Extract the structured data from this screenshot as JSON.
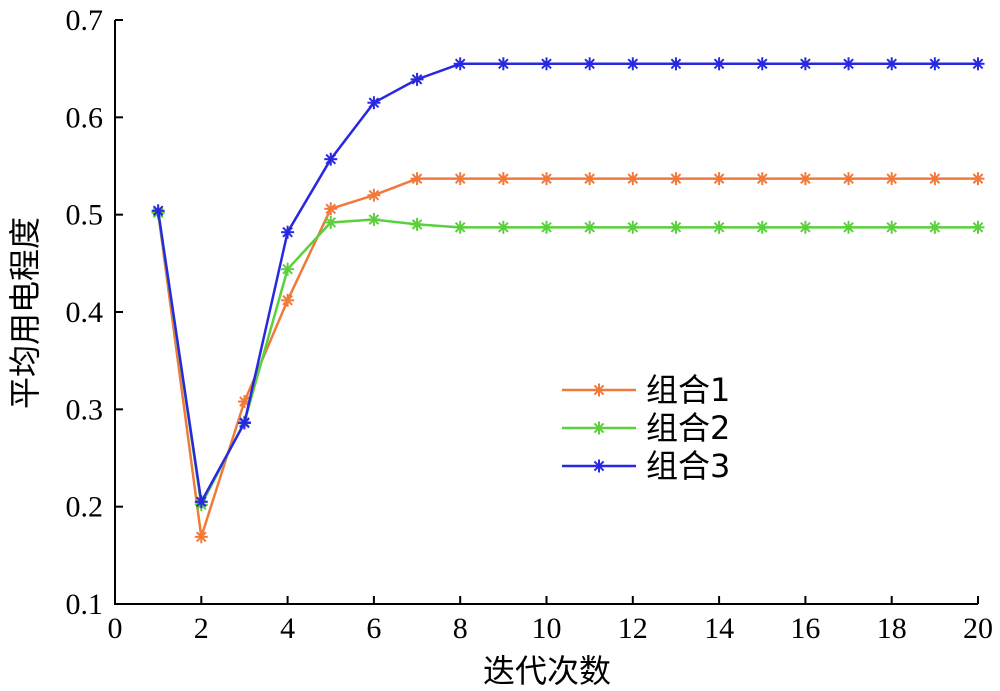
{
  "chart_data": {
    "type": "line",
    "title": "",
    "xlabel": "迭代次数",
    "ylabel": "平均用电程度",
    "xlim": [
      0,
      20
    ],
    "ylim": [
      0.1,
      0.7
    ],
    "x_ticks": [
      "0",
      "2",
      "4",
      "6",
      "8",
      "10",
      "12",
      "14",
      "16",
      "18",
      "20"
    ],
    "y_ticks": [
      "0.1",
      "0.2",
      "0.3",
      "0.4",
      "0.5",
      "0.6",
      "0.7"
    ],
    "grid": false,
    "legend_position": "center-right",
    "marker": "asterisk",
    "x": [
      1,
      2,
      3,
      4,
      5,
      6,
      7,
      8,
      9,
      10,
      11,
      12,
      13,
      14,
      15,
      16,
      17,
      18,
      19,
      20
    ],
    "series": [
      {
        "name": "组合1",
        "color": "#f07a3c",
        "values": [
          0.502,
          0.169,
          0.308,
          0.412,
          0.506,
          0.52,
          0.537,
          0.537,
          0.537,
          0.537,
          0.537,
          0.537,
          0.537,
          0.537,
          0.537,
          0.537,
          0.537,
          0.537,
          0.537,
          0.537
        ]
      },
      {
        "name": "组合2",
        "color": "#5ad13c",
        "values": [
          0.502,
          0.202,
          0.287,
          0.444,
          0.492,
          0.495,
          0.49,
          0.487,
          0.487,
          0.487,
          0.487,
          0.487,
          0.487,
          0.487,
          0.487,
          0.487,
          0.487,
          0.487,
          0.487,
          0.487
        ]
      },
      {
        "name": "组合3",
        "color": "#2828e0",
        "values": [
          0.504,
          0.205,
          0.286,
          0.482,
          0.557,
          0.615,
          0.639,
          0.655,
          0.655,
          0.655,
          0.655,
          0.655,
          0.655,
          0.655,
          0.655,
          0.655,
          0.655,
          0.655,
          0.655,
          0.655
        ]
      }
    ]
  }
}
